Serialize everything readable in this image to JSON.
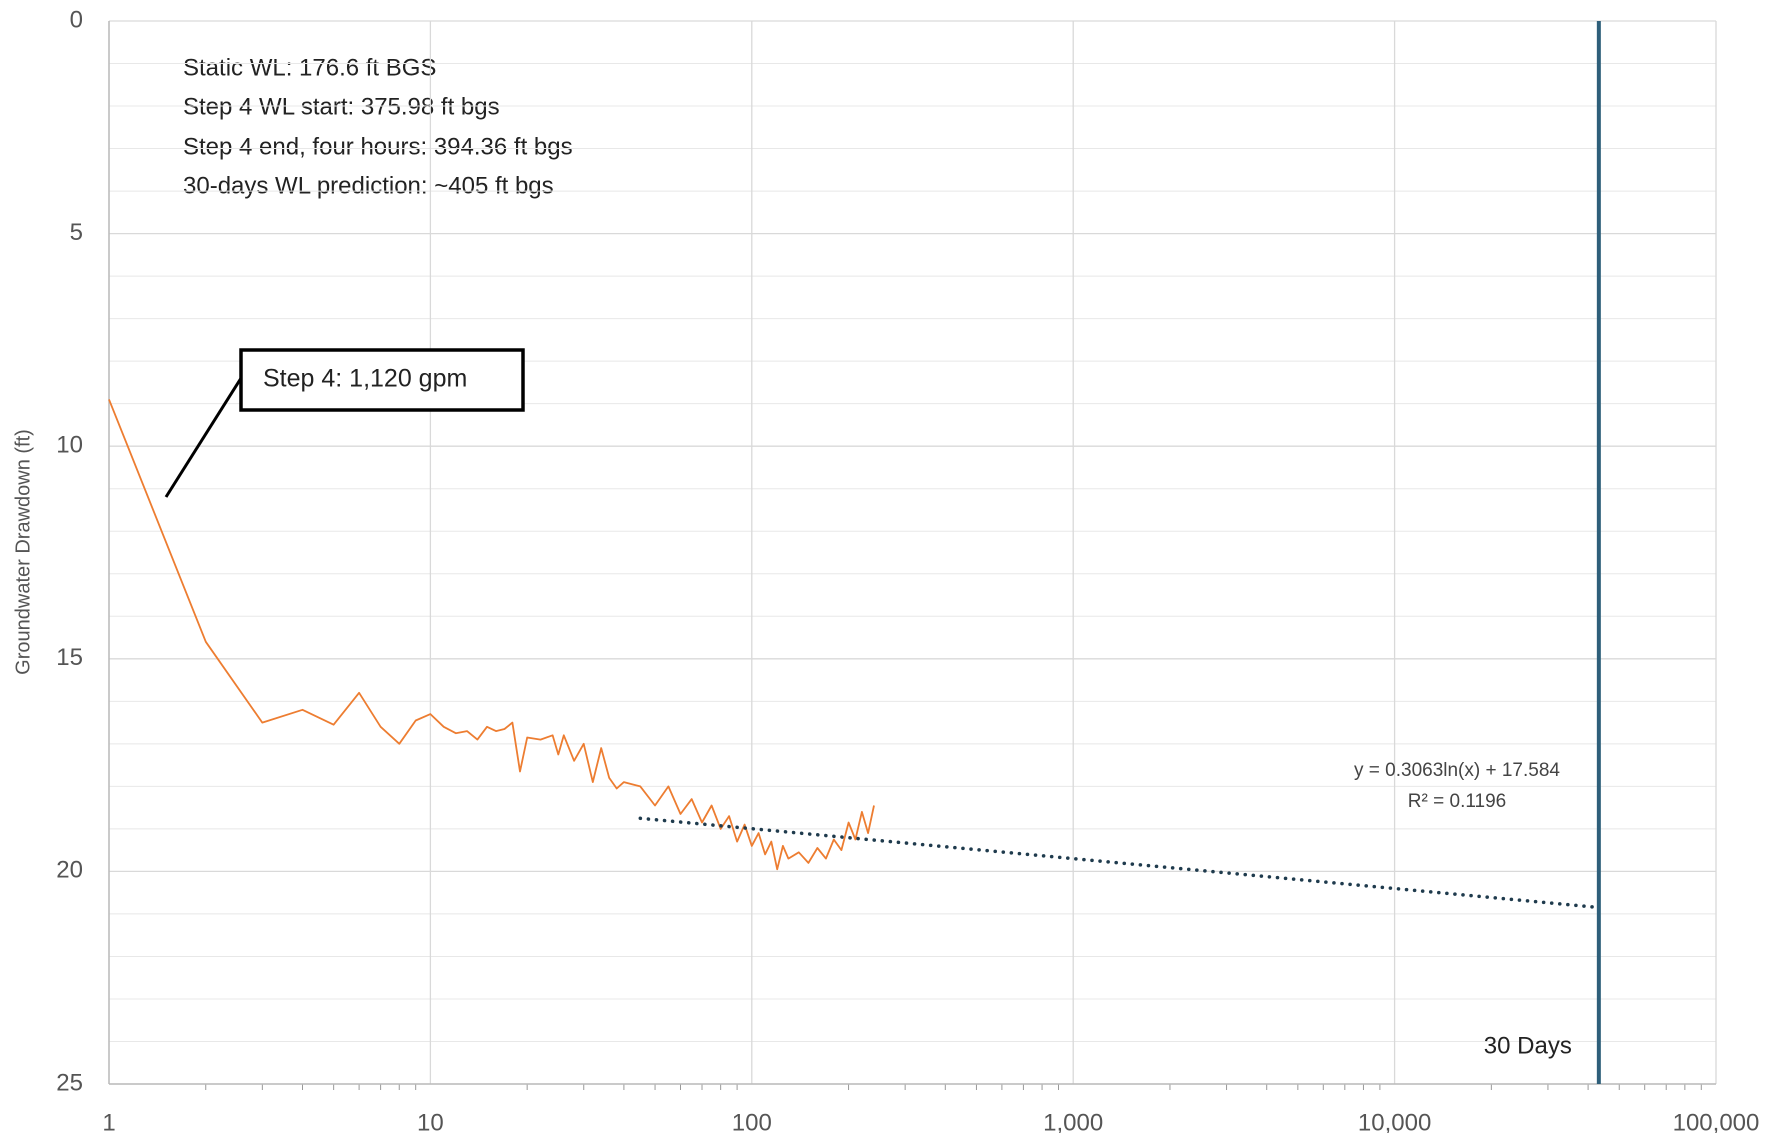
{
  "chart_data": {
    "type": "line",
    "ylabel": "Groundwater Drawdown (ft)",
    "xscale": "log",
    "xlim": [
      1,
      100000
    ],
    "xticks": [
      1,
      10,
      100,
      {
        "value": 1000,
        "label": "1,000"
      },
      {
        "value": 10000,
        "label": "10,000"
      },
      {
        "value": 100000,
        "label": "100,000"
      }
    ],
    "xminorticks": [
      2,
      3,
      4,
      5,
      6,
      7,
      8,
      9,
      20,
      30,
      40,
      50,
      60,
      70,
      80,
      90,
      200,
      300,
      400,
      500,
      600,
      700,
      800,
      900,
      2000,
      3000,
      4000,
      5000,
      6000,
      7000,
      8000,
      9000,
      20000,
      30000,
      40000,
      50000,
      60000,
      70000,
      80000,
      90000
    ],
    "ylim": [
      0,
      25
    ],
    "y_reversed": true,
    "yticks": [
      0,
      5,
      10,
      15,
      20,
      25
    ],
    "yminorticks": [
      1,
      2,
      3,
      4,
      6,
      7,
      8,
      9,
      11,
      12,
      13,
      14,
      16,
      17,
      18,
      19,
      21,
      22,
      23,
      24
    ],
    "grid": true,
    "series": [
      {
        "color": "#ed7d31",
        "style": "solid",
        "x": [
          1,
          2,
          3,
          4,
          5,
          6,
          7,
          8,
          9,
          10,
          11,
          12,
          13,
          14,
          15,
          16,
          17,
          18,
          19,
          20,
          22,
          24,
          25,
          26,
          28,
          30,
          32,
          34,
          36,
          38,
          40,
          45,
          50,
          55,
          60,
          65,
          70,
          75,
          80,
          85,
          90,
          95,
          100,
          105,
          110,
          115,
          120,
          125,
          130,
          140,
          150,
          160,
          170,
          180,
          190,
          200,
          210,
          220,
          230,
          240
        ],
        "values": [
          8.9,
          14.6,
          16.5,
          16.2,
          16.55,
          15.8,
          16.6,
          17.0,
          16.45,
          16.3,
          16.6,
          16.75,
          16.7,
          16.9,
          16.6,
          16.7,
          16.65,
          16.5,
          17.65,
          16.85,
          16.9,
          16.8,
          17.25,
          16.8,
          17.4,
          17.0,
          17.9,
          17.1,
          17.8,
          18.05,
          17.9,
          18.0,
          18.45,
          18.0,
          18.65,
          18.3,
          18.85,
          18.45,
          19.0,
          18.7,
          19.3,
          18.9,
          19.4,
          19.1,
          19.6,
          19.3,
          19.95,
          19.4,
          19.7,
          19.55,
          19.8,
          19.45,
          19.7,
          19.25,
          19.5,
          18.85,
          19.25,
          18.6,
          19.1,
          18.45
        ]
      },
      {
        "color": "#1f3b4d",
        "style": "dotted",
        "x": [
          45,
          43200
        ],
        "values": [
          18.75,
          20.85
        ]
      }
    ],
    "trend_label": [
      "y = 0.3063ln(x) + 17.584",
      "R² = 0.1196"
    ],
    "vline": {
      "x": 43200,
      "label": "30 Days",
      "color": "#2e5f7a"
    },
    "annotations": [
      "Static WL: 176.6 ft BGS",
      "Step 4 WL start: 375.98 ft bgs",
      "Step 4 end, four hours: 394.36 ft bgs",
      "30-days WL prediction: ~405 ft bgs"
    ],
    "callout": "Step 4: 1,120 gpm"
  }
}
